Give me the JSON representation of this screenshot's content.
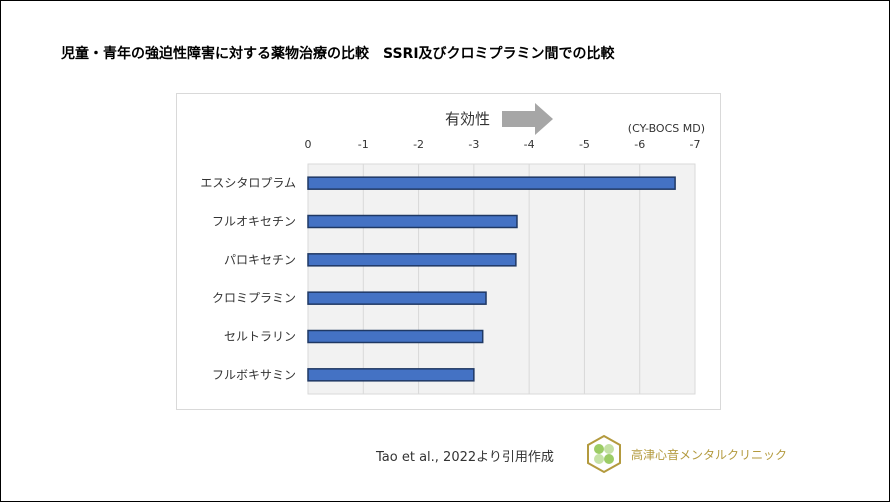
{
  "title": "児童・青年の強迫性障害に対する薬物治療の比較　SSRI及びクロミプラミン間での比較",
  "chart_data": {
    "type": "bar",
    "orientation": "horizontal",
    "categories": [
      "エスシタロプラム",
      "フルオキセチン",
      "パロキセチン",
      "クロミプラミン",
      "セルトラリン",
      "フルボキサミン"
    ],
    "values": [
      -6.64,
      -3.78,
      -3.76,
      -3.22,
      -3.16,
      -3.0
    ],
    "xlim": [
      0,
      -7
    ],
    "xticks": [
      "0",
      "-1",
      "-2",
      "-3",
      "-4",
      "-5",
      "-6",
      "-7"
    ],
    "xlabel": "(CY-BOCS MD)",
    "annotation": "有効性",
    "grid": true,
    "bar_color": "#4472c4",
    "bar_edge": "#1f3864",
    "plot_bg": "#f2f2f2"
  },
  "citation": "Tao et al., 2022より引用作成",
  "clinic_name": "高津心音メンタルクリニック"
}
